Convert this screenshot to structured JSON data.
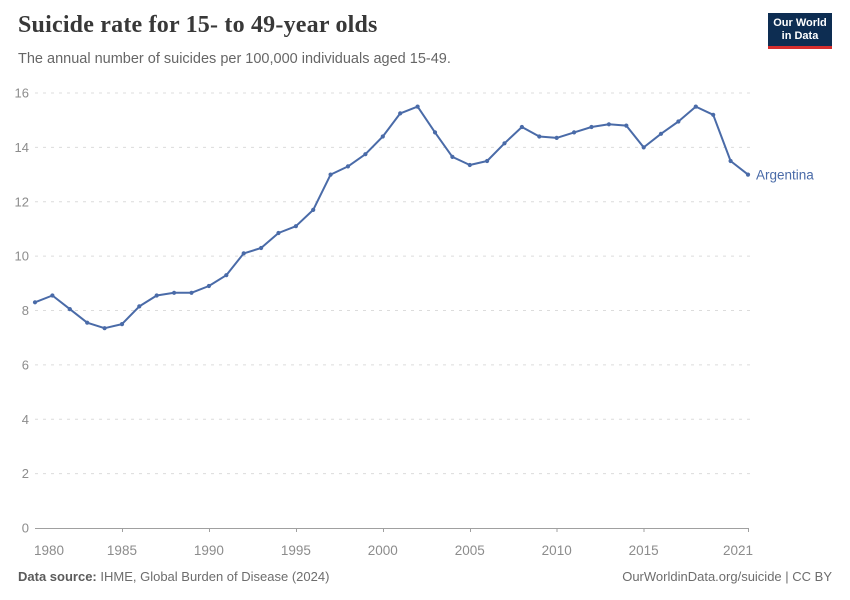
{
  "header": {
    "title": "Suicide rate for 15- to 49-year olds",
    "subtitle": "The annual number of suicides per 100,000 individuals aged 15-49.",
    "logo": {
      "line1": "Our World",
      "line2": "in Data"
    }
  },
  "footer": {
    "source_label": "Data source:",
    "source_value": " IHME, Global Burden of Disease (2024)",
    "link": "OurWorldinData.org/suicide | CC BY"
  },
  "colors": {
    "line": "#4a6ba8",
    "entity_label": "#4a6ba8",
    "grid": "#dcdcdc",
    "axis": "#a0a0a0",
    "tick_text": "#8c8c8c",
    "logo_bg": "#0d2d52",
    "logo_bar": "#d62e2e",
    "title_text": "#383838",
    "subtitle_text": "#666666"
  },
  "chart_data": {
    "type": "line",
    "title": "Suicide rate for 15- to 49-year olds",
    "subtitle": "The annual number of suicides per 100,000 individuals aged 15-49.",
    "xlabel": "",
    "ylabel": "",
    "ylim": [
      0,
      16
    ],
    "yticks": [
      0,
      2,
      4,
      6,
      8,
      10,
      12,
      14,
      16
    ],
    "xticks": [
      1980,
      1985,
      1990,
      1995,
      2000,
      2005,
      2010,
      2015,
      2021
    ],
    "grid": "horizontal-dashed",
    "legend": "end-of-line-label",
    "x": [
      1980,
      1981,
      1982,
      1983,
      1984,
      1985,
      1986,
      1987,
      1988,
      1989,
      1990,
      1991,
      1992,
      1993,
      1994,
      1995,
      1996,
      1997,
      1998,
      1999,
      2000,
      2001,
      2002,
      2003,
      2004,
      2005,
      2006,
      2007,
      2008,
      2009,
      2010,
      2011,
      2012,
      2013,
      2014,
      2015,
      2016,
      2017,
      2018,
      2019,
      2020,
      2021
    ],
    "series": [
      {
        "name": "Argentina",
        "color": "#4a6ba8",
        "values": [
          8.3,
          8.55,
          8.05,
          7.55,
          7.35,
          7.5,
          8.15,
          8.55,
          8.65,
          8.65,
          8.9,
          9.3,
          10.1,
          10.3,
          10.85,
          11.1,
          11.7,
          13.0,
          13.3,
          13.75,
          14.4,
          15.25,
          15.5,
          14.55,
          13.65,
          13.35,
          13.5,
          14.15,
          14.75,
          14.4,
          14.35,
          14.55,
          14.75,
          14.85,
          14.8,
          14.0,
          14.5,
          14.95,
          15.5,
          15.2,
          13.5,
          13.0
        ]
      }
    ]
  }
}
